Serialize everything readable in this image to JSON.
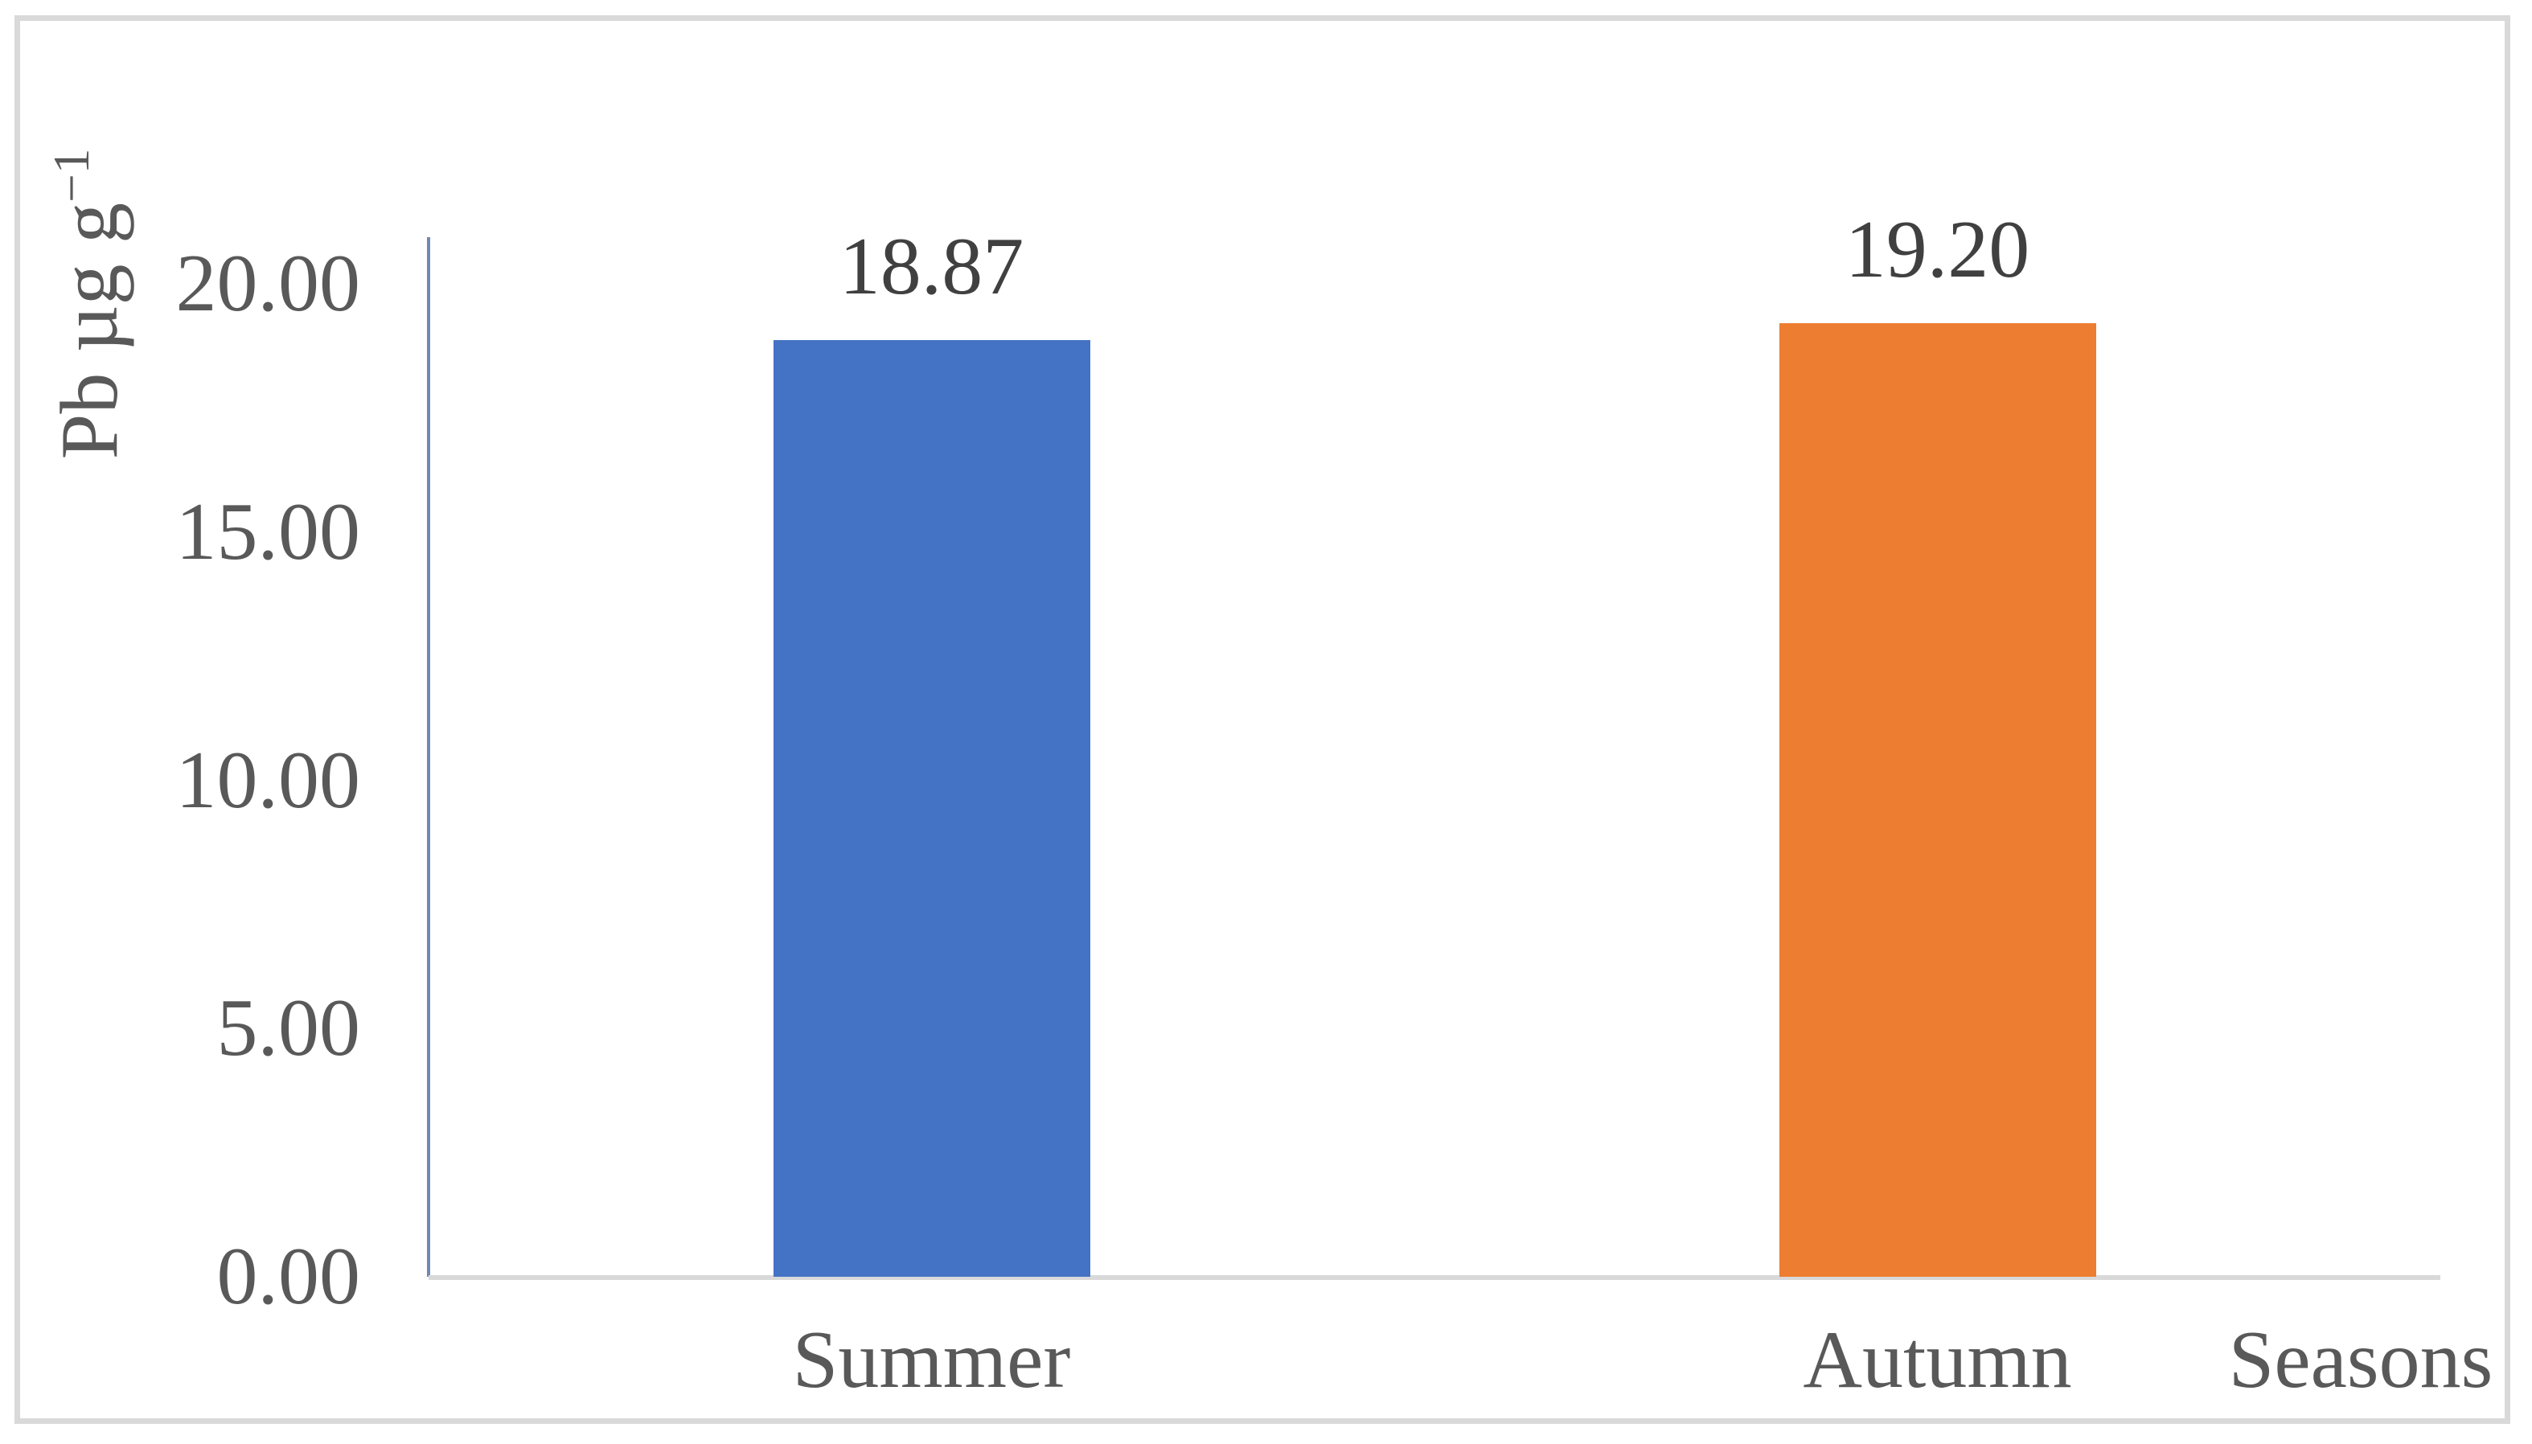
{
  "figure": {
    "background": "#FFFFFF",
    "border_color": "#D9D9D9"
  },
  "chart_data": {
    "type": "bar",
    "title": "",
    "categories": [
      "Summer",
      "Autumn"
    ],
    "values": [
      18.87,
      19.2
    ],
    "data_labels": [
      "18.87",
      "19.20"
    ],
    "bar_colors": [
      "#4472C4",
      "#ED7D31"
    ],
    "y_axis": {
      "label_prefix": "Pb µg g",
      "label_superscript": "−1",
      "ticks": [
        {
          "value": 0,
          "label": "0.00"
        },
        {
          "value": 5,
          "label": "5.00"
        },
        {
          "value": 10,
          "label": "10.00"
        },
        {
          "value": 15,
          "label": "15.00"
        },
        {
          "value": 20,
          "label": "20.00"
        }
      ],
      "range": [
        0,
        20.94
      ],
      "axis_line_color": "#6F88B4"
    },
    "x_axis": {
      "title": "Seasons",
      "baseline_color": "#D9D9D9"
    },
    "grid": "off",
    "legend": "none",
    "tick_label_color": "#595959",
    "data_label_color": "#404040"
  }
}
